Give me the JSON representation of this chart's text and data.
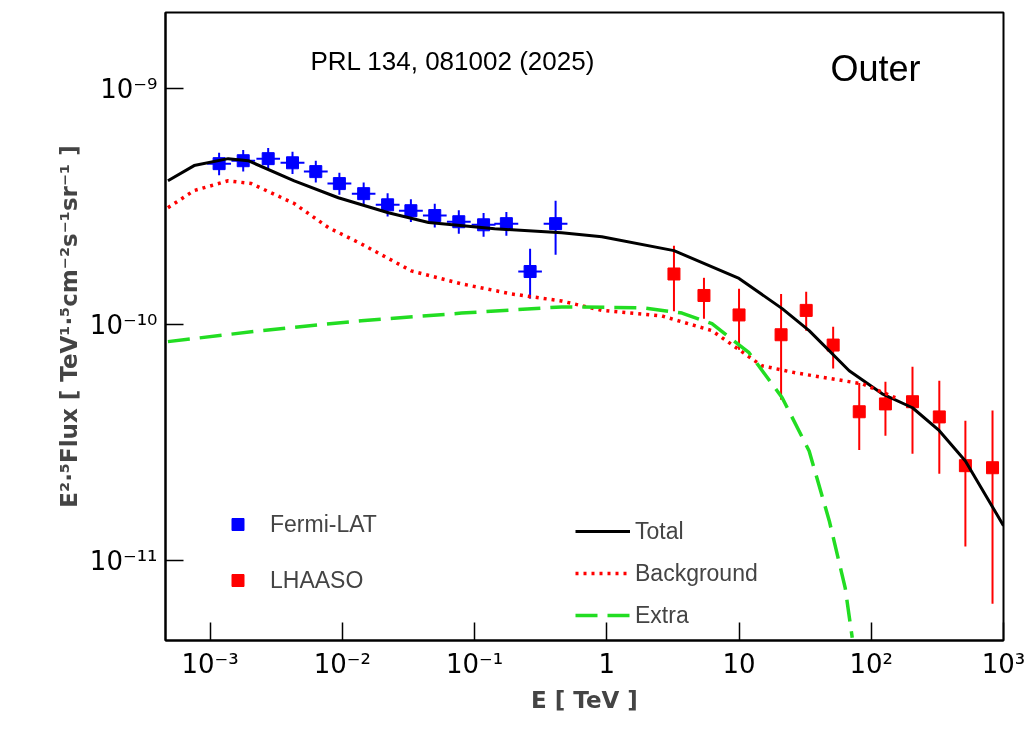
{
  "chart_data": {
    "type": "scatter",
    "xlabel": "E [ TeV ]",
    "ylabel": "E²·⁵Flux [ TeV¹·⁵cm⁻²s⁻¹sr⁻¹ ]",
    "annotations": [
      "PRL 134, 081002 (2025)",
      "Outer"
    ],
    "log": "xy",
    "xlim": [
      0.00046,
      1000
    ],
    "xticks": [
      {
        "value": 0.001,
        "label": "10⁻³"
      },
      {
        "value": 0.01,
        "label": "10⁻²"
      },
      {
        "value": 0.1,
        "label": "10⁻¹"
      },
      1,
      10,
      {
        "value": 100,
        "label": "10²"
      },
      {
        "value": 1000,
        "label": "10³"
      }
    ],
    "ylim": [
      4.6e-12,
      2.1e-09
    ],
    "yticks": [
      {
        "value": 1e-11,
        "label": "10⁻¹¹"
      },
      {
        "value": 1e-10,
        "label": "10⁻¹⁰"
      },
      {
        "value": 1e-09,
        "label": "10⁻⁹"
      }
    ],
    "grid": false,
    "legend": "bottom",
    "series": [
      {
        "name": "Fermi-LAT",
        "type": "scatter",
        "marker": "square",
        "color": "#0000ff",
        "x": [
          0.00117,
          0.00178,
          0.00275,
          0.0042,
          0.0063,
          0.0095,
          0.0145,
          0.022,
          0.033,
          0.05,
          0.076,
          0.117,
          0.174,
          0.263,
          0.41
        ],
        "values": [
          4.81e-10,
          4.95e-10,
          5.05e-10,
          4.85e-10,
          4.45e-10,
          3.96e-10,
          3.59e-10,
          3.22e-10,
          3.04e-10,
          2.9e-10,
          2.73e-10,
          2.65e-10,
          2.68e-10,
          1.68e-10,
          2.68e-10
        ],
        "errors": [
          [
            4.3e-10,
            5.35e-10
          ],
          [
            4.45e-10,
            5.5e-10
          ],
          [
            4.55e-10,
            5.6e-10
          ],
          [
            4.35e-10,
            5.4e-10
          ],
          [
            4e-10,
            4.95e-10
          ],
          [
            3.55e-10,
            4.4e-10
          ],
          [
            3.2e-10,
            4e-10
          ],
          [
            2.87e-10,
            3.6e-10
          ],
          [
            2.72e-10,
            3.4e-10
          ],
          [
            2.58e-10,
            3.25e-10
          ],
          [
            2.43e-10,
            3.05e-10
          ],
          [
            2.36e-10,
            2.97e-10
          ],
          [
            2.38e-10,
            3e-10
          ],
          [
            1.29e-10,
            2.1e-10
          ],
          [
            1.98e-10,
            3.35e-10
          ]
        ],
        "xerrors": [
          [
            0.00095,
            0.00144
          ],
          [
            0.00145,
            0.00219
          ],
          [
            0.00224,
            0.00338
          ],
          [
            0.00341,
            0.00517
          ],
          [
            0.00512,
            0.00775
          ],
          [
            0.00772,
            0.0117
          ],
          [
            0.0118,
            0.0178
          ],
          [
            0.0179,
            0.0271
          ],
          [
            0.0268,
            0.0406
          ],
          [
            0.0407,
            0.0615
          ],
          [
            0.0618,
            0.0935
          ],
          [
            0.095,
            0.144
          ],
          [
            0.141,
            0.214
          ],
          [
            0.214,
            0.323
          ],
          [
            0.333,
            0.504
          ]
        ]
      },
      {
        "name": "LHAASO",
        "type": "scatter",
        "marker": "square",
        "color": "#ff0000",
        "x": [
          3.22,
          5.43,
          10.0,
          20.8,
          32.2,
          51.5,
          81.1,
          128,
          205,
          327,
          515,
          826
        ],
        "values": [
          1.64e-10,
          1.33e-10,
          1.1e-10,
          9.07e-11,
          1.15e-10,
          8.2e-11,
          4.28e-11,
          4.62e-11,
          4.72e-11,
          4.07e-11,
          2.53e-11,
          2.48e-11
        ],
        "errors": [
          [
            1.14e-10,
            2.16e-10
          ],
          [
            1.06e-10,
            1.58e-10
          ],
          [
            7.83e-11,
            1.42e-10
          ],
          [
            4.81e-11,
            1.35e-10
          ],
          [
            9.44e-11,
            1.38e-10
          ],
          [
            6.52e-11,
            9.8e-11
          ],
          [
            2.95e-11,
            5.67e-11
          ],
          [
            3.39e-11,
            5.73e-11
          ],
          [
            2.84e-11,
            6.63e-11
          ],
          [
            2.34e-11,
            5.79e-11
          ],
          [
            1.15e-11,
            3.92e-11
          ],
          [
            6.58e-12,
            4.33e-11
          ]
        ]
      },
      {
        "name": "Total",
        "type": "line",
        "line_style": "solid",
        "marker": "none",
        "color": "#000000",
        "x": [
          0.00048,
          0.000757,
          0.00137,
          0.00194,
          0.00433,
          0.00933,
          0.0223,
          0.0449,
          0.142,
          0.456,
          0.917,
          3.22,
          10.0,
          21.2,
          33.9,
          68.1,
          121,
          205,
          327,
          515,
          1000
        ],
        "values": [
          4.07e-10,
          4.72e-10,
          5.05e-10,
          4.95e-10,
          4.07e-10,
          3.45e-10,
          2.98e-10,
          2.71e-10,
          2.55e-10,
          2.45e-10,
          2.36e-10,
          2.06e-10,
          1.57e-10,
          1.17e-10,
          9.44e-11,
          6.38e-11,
          5.1e-11,
          4.45e-11,
          3.56e-11,
          2.65e-11,
          1.41e-11
        ]
      },
      {
        "name": "Background",
        "type": "line",
        "line_style": "dotted",
        "marker": "none",
        "color": "#ff0000",
        "x": [
          0.00048,
          0.000757,
          0.00137,
          0.00205,
          0.00433,
          0.00783,
          0.0139,
          0.0333,
          0.0797,
          0.191,
          0.456,
          0.917,
          2.61,
          6.24,
          14.9,
          26.6,
          85.5,
          152
        ],
        "values": [
          3.13e-10,
          3.7e-10,
          4.07e-10,
          3.96e-10,
          3.26e-10,
          2.58e-10,
          2.2e-10,
          1.69e-10,
          1.49e-10,
          1.35e-10,
          1.26e-10,
          1.15e-10,
          1.09e-10,
          9.44e-11,
          6.7e-11,
          6.26e-11,
          5.62e-11,
          4.91e-11
        ]
      },
      {
        "name": "Extra",
        "type": "line",
        "line_style": "dashed",
        "marker": "none",
        "color": "#22dd22",
        "x": [
          0.00048,
          0.00243,
          0.0139,
          0.0797,
          0.456,
          1.84,
          3.7,
          6.24,
          11.9,
          21.2,
          33.9,
          48.1,
          63.5,
          71.8
        ],
        "values": [
          8.48e-11,
          9.44e-11,
          1.04e-10,
          1.12e-10,
          1.19e-10,
          1.18e-10,
          1.12e-10,
          1.01e-10,
          7.61e-11,
          4.91e-11,
          2.92e-11,
          1.48e-11,
          7.69e-12,
          4.72e-12
        ]
      }
    ]
  }
}
